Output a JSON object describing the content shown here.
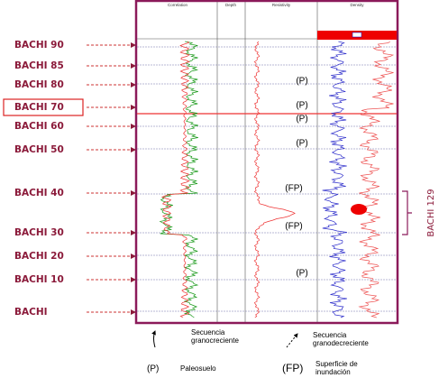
{
  "left_labels": [
    {
      "text": "BACHI 90"
    },
    {
      "text": "BACHI 85"
    },
    {
      "text": "BACHI 80"
    },
    {
      "text": "BACHI 70",
      "boxed": true
    },
    {
      "text": "BACHI 60"
    },
    {
      "text": "BACHI 50"
    },
    {
      "text": "BACHI 40"
    },
    {
      "text": "BACHI 30"
    },
    {
      "text": "BACHI 20"
    },
    {
      "text": "BACHI 10"
    },
    {
      "text": "BACHI"
    }
  ],
  "track_headers": [
    "Correlation",
    "Depth",
    "Resistivity",
    "Density"
  ],
  "markers": [
    "(P)",
    "(P)",
    "(P)",
    "(P)",
    "(FP)",
    "(FP)",
    "(P)"
  ],
  "bracket_label": "BACHI 129",
  "legend": {
    "granocreciente": [
      "Secuencia",
      "granocreciente"
    ],
    "granodecreciente": [
      "Secuencia",
      "granodecreciente"
    ],
    "p_symbol": "(P)",
    "p_text": "Paleosuelo",
    "fp_symbol": "(FP)",
    "fp_text": [
      "Superficie de",
      "inundación"
    ]
  }
}
